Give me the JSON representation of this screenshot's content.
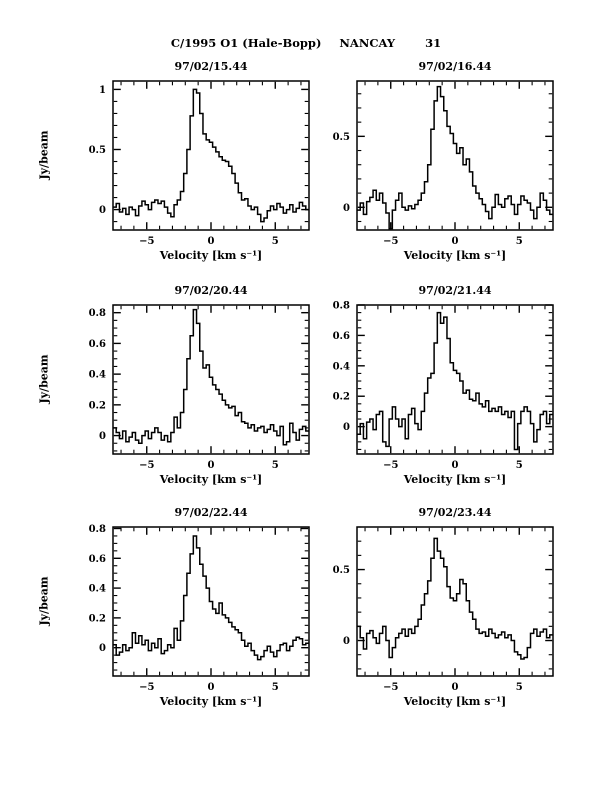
{
  "page": {
    "header": {
      "comet": "C/1995 O1 (Hale-Bopp)",
      "observatory": "NANCAY",
      "page_number": "31"
    }
  },
  "chart_data": [
    {
      "type": "line",
      "style": "histogram-step",
      "grid_position": "row1-col1",
      "title": "97/02/15.44",
      "xlabel": "Velocity [km s⁻¹]",
      "ylabel": "Jy/beam",
      "xlim": [
        -7.625,
        7.625
      ],
      "ylim": [
        -0.17,
        1.07
      ],
      "x_major_ticks": [
        -5,
        0,
        5
      ],
      "x_minor_step": 1,
      "y_major_ticks": [
        0,
        0.5,
        1
      ],
      "y_minor_step": 0.1,
      "x_start": -7.5,
      "x_step": 0.25,
      "values": [
        0.02,
        0.05,
        -0.02,
        0.01,
        -0.04,
        0.02,
        0,
        -0.05,
        0.03,
        0.07,
        0.04,
        0,
        0.06,
        0.08,
        0.05,
        0.07,
        0.02,
        -0.03,
        -0.06,
        0.04,
        0.08,
        0.15,
        0.3,
        0.5,
        0.78,
        1,
        0.97,
        0.8,
        0.63,
        0.58,
        0.56,
        0.52,
        0.48,
        0.44,
        0.41,
        0.4,
        0.36,
        0.3,
        0.22,
        0.14,
        0.08,
        0.09,
        0.03,
        0,
        0.02,
        -0.04,
        -0.1,
        -0.07,
        -0.01,
        0.03,
        0,
        0.05,
        0.02,
        -0.03,
        0,
        0.04,
        -0.02,
        0.01,
        0.06,
        0.03,
        0
      ]
    },
    {
      "type": "line",
      "style": "histogram-step",
      "grid_position": "row1-col2",
      "title": "97/02/16.44",
      "xlabel": "Velocity [km s⁻¹]",
      "xlim": [
        -7.625,
        7.625
      ],
      "ylim": [
        -0.16,
        0.89
      ],
      "x_major_ticks": [
        -5,
        0,
        5
      ],
      "x_minor_step": 1,
      "y_major_ticks": [
        0,
        0.5
      ],
      "y_minor_step": 0.1,
      "x_start": -7.5,
      "x_step": 0.25,
      "values": [
        -0.02,
        0.03,
        -0.05,
        0.04,
        0.07,
        0.12,
        0.05,
        0.1,
        0.03,
        -0.04,
        -0.15,
        -0.02,
        0.05,
        0.1,
        0,
        -0.02,
        0.01,
        -0.01,
        0.02,
        0.05,
        0.1,
        0.18,
        0.3,
        0.55,
        0.75,
        0.85,
        0.78,
        0.68,
        0.57,
        0.52,
        0.45,
        0.38,
        0.42,
        0.3,
        0.34,
        0.25,
        0.15,
        0.1,
        0.06,
        0.02,
        -0.03,
        -0.08,
        0,
        0.09,
        0.02,
        0,
        0.06,
        0.08,
        0.02,
        -0.05,
        0.02,
        0.08,
        0.05,
        0.03,
        -0.02,
        -0.08,
        0,
        0.1,
        0.05,
        -0.02,
        -0.05
      ]
    },
    {
      "type": "line",
      "style": "histogram-step",
      "grid_position": "row2-col1",
      "title": "97/02/20.44",
      "xlabel": "Velocity [km s⁻¹]",
      "ylabel": "Jy/beam",
      "xlim": [
        -7.625,
        7.625
      ],
      "ylim": [
        -0.12,
        0.85
      ],
      "x_major_ticks": [
        -5,
        0,
        5
      ],
      "x_minor_step": 1,
      "y_major_ticks": [
        0,
        0.2,
        0.4,
        0.6,
        0.8
      ],
      "y_minor_step": 0.05,
      "x_start": -7.5,
      "x_step": 0.25,
      "values": [
        0.05,
        0.02,
        -0.02,
        0.03,
        -0.04,
        -0.01,
        0.02,
        -0.03,
        -0.05,
        0,
        0.03,
        -0.02,
        0.02,
        0.05,
        0.02,
        -0.03,
        0,
        -0.04,
        0.02,
        0.12,
        0.05,
        0.15,
        0.3,
        0.5,
        0.65,
        0.82,
        0.73,
        0.55,
        0.44,
        0.46,
        0.38,
        0.33,
        0.3,
        0.27,
        0.23,
        0.2,
        0.18,
        0.19,
        0.13,
        0.15,
        0.09,
        0.08,
        0.05,
        0.07,
        0.03,
        0.05,
        0.06,
        0.02,
        0.04,
        0.07,
        0.03,
        0,
        0.06,
        -0.06,
        -0.04,
        0.08,
        0.02,
        -0.03,
        0.04,
        0.06,
        0.03
      ]
    },
    {
      "type": "line",
      "style": "histogram-step",
      "grid_position": "row2-col2",
      "title": "97/02/21.44",
      "xlabel": "Velocity [km s⁻¹]",
      "xlim": [
        -7.625,
        7.625
      ],
      "ylim": [
        -0.18,
        0.8
      ],
      "x_major_ticks": [
        -5,
        0,
        5
      ],
      "x_minor_step": 1,
      "y_major_ticks": [
        0,
        0.2,
        0.4,
        0.6,
        0.8
      ],
      "y_minor_step": 0.05,
      "x_start": -7.5,
      "x_step": 0.25,
      "values": [
        -0.05,
        0.02,
        -0.08,
        0.03,
        0.05,
        -0.02,
        0.08,
        0.1,
        -0.1,
        -0.13,
        0.05,
        0.13,
        0.05,
        0,
        0.05,
        -0.08,
        0.08,
        0.12,
        0.02,
        -0.02,
        0.1,
        0.22,
        0.32,
        0.35,
        0.55,
        0.75,
        0.68,
        0.72,
        0.58,
        0.42,
        0.37,
        0.35,
        0.3,
        0.22,
        0.24,
        0.18,
        0.17,
        0.22,
        0.15,
        0.13,
        0.17,
        0.1,
        0.12,
        0.1,
        0.13,
        0.08,
        0.1,
        0.06,
        0.1,
        -0.15,
        0.02,
        0.1,
        0.13,
        0.1,
        0.02,
        -0.1,
        -0.02,
        0.08,
        0.1,
        0.02,
        0.08
      ]
    },
    {
      "type": "line",
      "style": "histogram-step",
      "grid_position": "row3-col1",
      "title": "97/02/22.44",
      "xlabel": "Velocity [km s⁻¹]",
      "ylabel": "Jy/beam",
      "xlim": [
        -7.625,
        7.625
      ],
      "ylim": [
        -0.19,
        0.81
      ],
      "x_major_ticks": [
        -5,
        0,
        5
      ],
      "x_minor_step": 1,
      "y_major_ticks": [
        0,
        0.2,
        0.4,
        0.6,
        0.8
      ],
      "y_minor_step": 0.05,
      "x_start": -7.5,
      "x_step": 0.25,
      "values": [
        0.02,
        -0.05,
        -0.03,
        0.02,
        -0.02,
        0,
        0.1,
        0.03,
        0.08,
        0.02,
        0.05,
        -0.02,
        0.03,
        0,
        0.06,
        -0.04,
        -0.02,
        0.02,
        0,
        0.13,
        0.05,
        0.18,
        0.35,
        0.5,
        0.63,
        0.75,
        0.67,
        0.56,
        0.48,
        0.4,
        0.31,
        0.26,
        0.23,
        0.3,
        0.22,
        0.2,
        0.17,
        0.14,
        0.12,
        0.1,
        0.05,
        0.01,
        0.03,
        -0.02,
        -0.05,
        -0.08,
        -0.06,
        -0.02,
        0.01,
        -0.03,
        -0.06,
        -0.02,
        0.02,
        0.03,
        -0.02,
        0.01,
        0.05,
        0.07,
        0.06,
        0.02,
        0.03
      ]
    },
    {
      "type": "line",
      "style": "histogram-step",
      "grid_position": "row3-col2",
      "title": "97/02/23.44",
      "xlabel": "Velocity [km s⁻¹]",
      "xlim": [
        -7.625,
        7.625
      ],
      "ylim": [
        -0.25,
        0.8
      ],
      "x_major_ticks": [
        -5,
        0,
        5
      ],
      "x_minor_step": 1,
      "y_major_ticks": [
        0,
        0.5
      ],
      "y_minor_step": 0.1,
      "x_start": -7.5,
      "x_step": 0.25,
      "values": [
        0.1,
        0.02,
        -0.06,
        0.05,
        0.07,
        0.02,
        -0.02,
        0.05,
        0.1,
        0,
        -0.12,
        -0.05,
        0.02,
        0.05,
        0.08,
        0.03,
        0.08,
        0.05,
        0.1,
        0.15,
        0.25,
        0.33,
        0.42,
        0.58,
        0.72,
        0.63,
        0.58,
        0.52,
        0.38,
        0.3,
        0.28,
        0.33,
        0.43,
        0.4,
        0.28,
        0.2,
        0.15,
        0.08,
        0.05,
        0.06,
        0.03,
        0.08,
        0.05,
        0.02,
        0.04,
        0.06,
        0.02,
        0.04,
        0,
        -0.08,
        -0.1,
        -0.13,
        -0.12,
        -0.05,
        0.05,
        0.08,
        0.03,
        0.06,
        0.08,
        0.02,
        0.04
      ]
    }
  ],
  "axis_color": "#000000",
  "trace_color": "#000000"
}
